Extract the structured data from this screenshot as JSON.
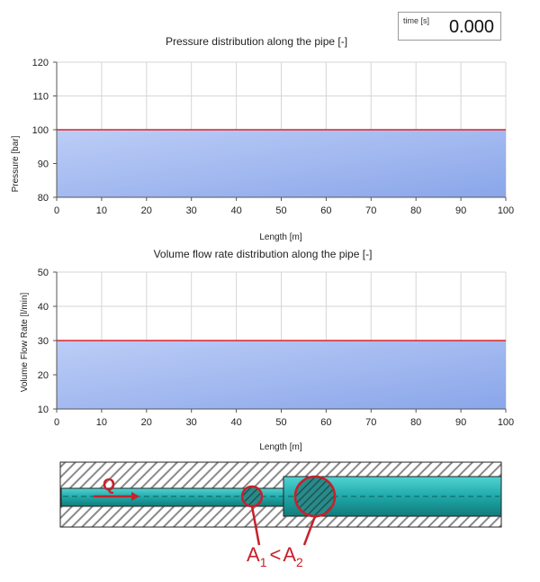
{
  "time_display": {
    "label": "time [s]",
    "value": "0.000"
  },
  "chart_data": [
    {
      "type": "area",
      "title": "Pressure distribution along the pipe [-]",
      "xlabel": "Length [m]",
      "ylabel": "Pressure [bar]",
      "xlim": [
        0,
        100
      ],
      "ylim": [
        80,
        120
      ],
      "xticks": [
        0,
        10,
        20,
        30,
        40,
        50,
        60,
        70,
        80,
        90,
        100
      ],
      "yticks": [
        80,
        90,
        100,
        110,
        120
      ],
      "grid": true,
      "series": [
        {
          "x": [
            0,
            100
          ],
          "values": [
            100,
            100
          ],
          "line_color": "#e0242a"
        }
      ]
    },
    {
      "type": "area",
      "title": "Volume flow rate distribution along the pipe [-]",
      "xlabel": "Length [m]",
      "ylabel": "Volume Flow Rate [l/min]",
      "xlim": [
        0,
        100
      ],
      "ylim": [
        10,
        50
      ],
      "xticks": [
        0,
        10,
        20,
        30,
        40,
        50,
        60,
        70,
        80,
        90,
        100
      ],
      "yticks": [
        10,
        20,
        30,
        40,
        50
      ],
      "grid": true,
      "series": [
        {
          "x": [
            0,
            100
          ],
          "values": [
            30,
            30
          ],
          "line_color": "#e0242a"
        }
      ]
    }
  ],
  "pipe_diagram": {
    "flow_label": "Q",
    "area_label": {
      "a": "A",
      "sub1": "1",
      "lt": "<",
      "b": "A",
      "sub2": "2"
    },
    "colors": {
      "fluid": "#1fa8a8",
      "hatch": "#8a8a8a",
      "accent": "#c8202a"
    }
  }
}
